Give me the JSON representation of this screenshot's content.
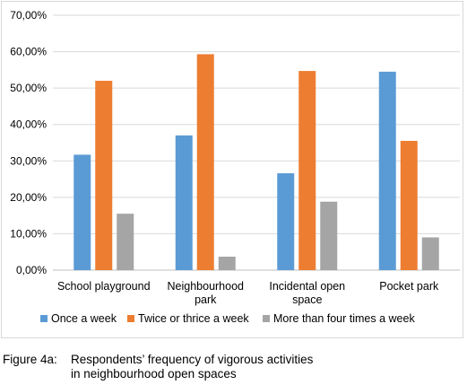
{
  "chart_data": {
    "type": "bar",
    "categories": [
      [
        "School playground"
      ],
      [
        "Neighbourhood",
        "park"
      ],
      [
        "Incidental open",
        "space"
      ],
      [
        "Pocket park"
      ]
    ],
    "series": [
      {
        "name": "Once a week",
        "color": "#5b9bd5",
        "values": [
          31.7,
          37.0,
          26.6,
          54.5
        ]
      },
      {
        "name": "Twice or thrice a week",
        "color": "#ed7d31",
        "values": [
          52.0,
          59.3,
          54.7,
          35.5
        ]
      },
      {
        "name": "More than four times a week",
        "color": "#a5a5a5",
        "values": [
          15.5,
          3.7,
          18.8,
          9.0
        ]
      }
    ],
    "yticks": [
      "0,00%",
      "10,00%",
      "20,00%",
      "30,00%",
      "40,00%",
      "50,00%",
      "60,00%",
      "70,00%"
    ],
    "ylim": [
      0,
      70
    ],
    "grid": true,
    "legend": "bottom"
  },
  "caption": {
    "prefix": "Figure 4a:",
    "line1": "Respondents’ frequency of vigorous activities",
    "line2": "in neighbourhood open spaces"
  }
}
